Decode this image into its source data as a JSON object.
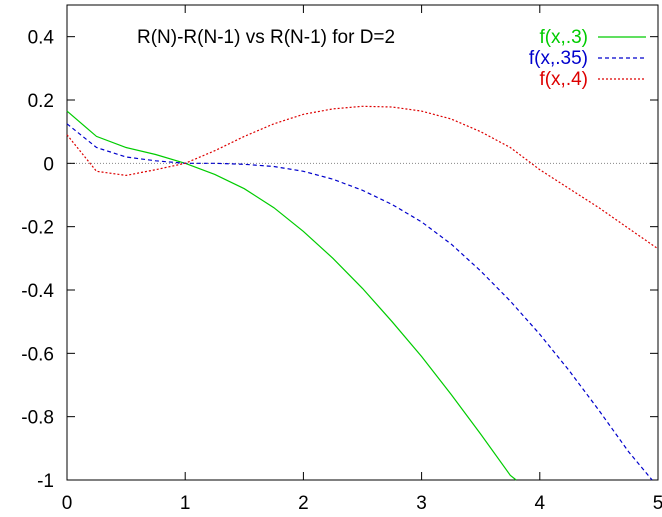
{
  "chart_data": {
    "type": "line",
    "title": "R(N)-R(N-1) vs R(N-1) for D=2",
    "xlabel": "",
    "ylabel": "",
    "xlim": [
      0,
      5
    ],
    "ylim": [
      -1,
      0.5
    ],
    "x_ticks": [
      0,
      1,
      2,
      3,
      4,
      5
    ],
    "y_ticks": [
      -1,
      -0.8,
      -0.6,
      -0.4,
      -0.2,
      0,
      0.2,
      0.4
    ],
    "x_tick_labels": [
      "0",
      "1",
      "2",
      "3",
      "4",
      "5"
    ],
    "y_tick_labels": [
      "-1",
      "-0.8",
      "-0.6",
      "-0.4",
      "-0.2",
      "0",
      "0.2",
      "0.4"
    ],
    "grid": false,
    "legend_position": "top-right",
    "zero_line": true,
    "series": [
      {
        "name": "f(x,.3)",
        "color": "#00cc00",
        "dash": "solid",
        "x": [
          0,
          0.25,
          0.5,
          0.75,
          1.0,
          1.25,
          1.5,
          1.75,
          2.0,
          2.25,
          2.5,
          2.75,
          3.0,
          3.25,
          3.5,
          3.75,
          3.8
        ],
        "y": [
          0.165,
          0.085,
          0.05,
          0.028,
          0.0,
          -0.035,
          -0.08,
          -0.14,
          -0.215,
          -0.3,
          -0.395,
          -0.5,
          -0.61,
          -0.73,
          -0.855,
          -0.985,
          -1.0
        ]
      },
      {
        "name": "f(x,.35)",
        "color": "#0000cc",
        "dash": "dashed",
        "x": [
          0,
          0.25,
          0.5,
          0.75,
          1.0,
          1.25,
          1.5,
          1.75,
          2.0,
          2.25,
          2.5,
          2.75,
          3.0,
          3.25,
          3.5,
          3.75,
          4.0,
          4.25,
          4.5,
          4.75,
          4.95
        ],
        "y": [
          0.125,
          0.05,
          0.02,
          0.008,
          0.0,
          0.0,
          -0.003,
          -0.01,
          -0.025,
          -0.05,
          -0.085,
          -0.13,
          -0.185,
          -0.255,
          -0.34,
          -0.435,
          -0.54,
          -0.655,
          -0.78,
          -0.91,
          -1.0
        ]
      },
      {
        "name": "f(x,.4)",
        "color": "#dd0000",
        "dash": "dotted",
        "x": [
          0,
          0.25,
          0.5,
          0.75,
          1.0,
          1.25,
          1.5,
          1.75,
          2.0,
          2.25,
          2.5,
          2.75,
          3.0,
          3.25,
          3.5,
          3.75,
          4.0,
          4.25,
          4.5,
          4.75,
          5.0
        ],
        "y": [
          0.09,
          -0.025,
          -0.038,
          -0.02,
          0.0,
          0.04,
          0.085,
          0.125,
          0.155,
          0.172,
          0.18,
          0.178,
          0.165,
          0.14,
          0.1,
          0.05,
          -0.02,
          -0.08,
          -0.14,
          -0.205,
          -0.27
        ]
      }
    ]
  }
}
